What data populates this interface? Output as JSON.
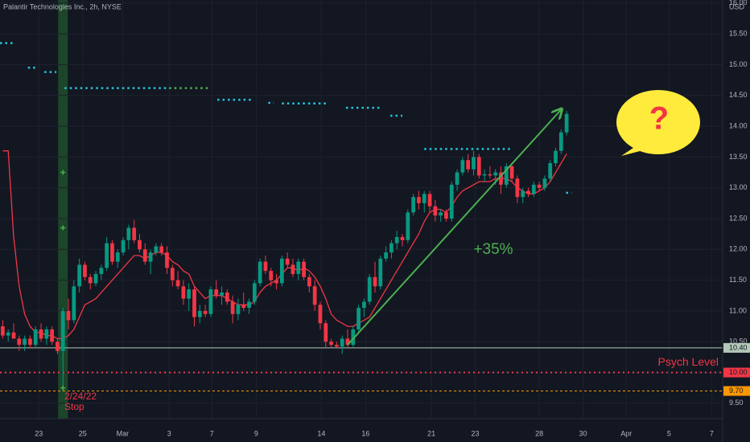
{
  "chart_data": {
    "type": "candlestick",
    "title": "Palantir Technologies Inc., 2h, NYSE",
    "currency": "USD",
    "xlim": [
      -0.5,
      131.5
    ],
    "ylim": [
      9.25,
      16.05
    ],
    "xticks": [
      {
        "value": 6.6,
        "label": "23"
      },
      {
        "value": 14.6,
        "label": "25"
      },
      {
        "value": 21.9,
        "label": "Mar"
      },
      {
        "value": 30.4,
        "label": "3"
      },
      {
        "value": 38.2,
        "label": "7"
      },
      {
        "value": 46.3,
        "label": "9"
      },
      {
        "value": 58.2,
        "label": "14"
      },
      {
        "value": 66.3,
        "label": "16"
      },
      {
        "value": 78.3,
        "label": "21"
      },
      {
        "value": 86.3,
        "label": "23"
      },
      {
        "value": 98.0,
        "label": "28"
      },
      {
        "value": 106.0,
        "label": "30"
      },
      {
        "value": 113.9,
        "label": "Apr"
      },
      {
        "value": 121.7,
        "label": "5"
      },
      {
        "value": 129.5,
        "label": "7"
      }
    ],
    "yticks": [
      {
        "value": 9.5,
        "label": "9.50"
      },
      {
        "value": 10,
        "label": "10.00"
      },
      {
        "value": 10.5,
        "label": "10.50"
      },
      {
        "value": 11,
        "label": "11.00"
      },
      {
        "value": 11.5,
        "label": "11.50"
      },
      {
        "value": 12,
        "label": "12.00"
      },
      {
        "value": 12.5,
        "label": "12.50"
      },
      {
        "value": 13,
        "label": "13.00"
      },
      {
        "value": 13.5,
        "label": "13.50"
      },
      {
        "value": 14,
        "label": "14.00"
      },
      {
        "value": 14.5,
        "label": "14.50"
      },
      {
        "value": 15,
        "label": "15.00"
      },
      {
        "value": 15.5,
        "label": "15.50"
      },
      {
        "value": 16,
        "label": "16.00"
      }
    ],
    "grid": true,
    "up_color": "#089981",
    "down_color": "#f23645",
    "x": [
      0,
      1,
      2,
      3,
      4,
      5,
      6,
      7,
      8,
      9,
      10,
      11,
      12,
      13,
      14,
      15,
      16,
      17,
      18,
      19,
      20,
      21,
      22,
      23,
      24,
      25,
      26,
      27,
      28,
      29,
      30,
      31,
      32,
      33,
      34,
      35,
      36,
      37,
      38,
      39,
      40,
      41,
      42,
      43,
      44,
      45,
      46,
      47,
      48,
      49,
      50,
      51,
      52,
      53,
      54,
      55,
      56,
      57,
      58,
      59,
      60,
      61,
      62,
      63,
      64,
      65,
      66,
      67,
      68,
      69,
      70,
      71,
      72,
      73,
      74,
      75,
      76,
      77,
      78,
      79,
      80,
      81,
      82,
      83,
      84,
      85,
      86,
      87,
      88,
      89,
      90,
      91,
      92,
      93,
      94,
      95,
      96,
      97,
      98,
      99,
      100,
      101,
      102,
      103
    ],
    "ohlc": [
      [
        10.75,
        10.85,
        10.55,
        10.6
      ],
      [
        10.6,
        10.7,
        10.5,
        10.65
      ],
      [
        10.65,
        10.8,
        10.55,
        10.55
      ],
      [
        10.55,
        10.6,
        10.35,
        10.45
      ],
      [
        10.45,
        10.6,
        10.35,
        10.55
      ],
      [
        10.55,
        10.6,
        10.4,
        10.45
      ],
      [
        10.45,
        10.75,
        10.4,
        10.7
      ],
      [
        10.7,
        10.8,
        10.5,
        10.55
      ],
      [
        10.55,
        10.75,
        10.45,
        10.7
      ],
      [
        10.7,
        10.75,
        10.45,
        10.5
      ],
      [
        10.5,
        10.55,
        10.3,
        10.35
      ],
      [
        10.35,
        11.05,
        9.72,
        11.0
      ],
      [
        11.0,
        11.2,
        10.7,
        10.85
      ],
      [
        10.85,
        11.5,
        10.8,
        11.4
      ],
      [
        11.4,
        11.85,
        11.3,
        11.75
      ],
      [
        11.75,
        11.8,
        11.5,
        11.55
      ],
      [
        11.55,
        11.6,
        11.35,
        11.45
      ],
      [
        11.45,
        11.65,
        11.4,
        11.6
      ],
      [
        11.6,
        11.75,
        11.5,
        11.7
      ],
      [
        11.7,
        12.2,
        11.65,
        12.1
      ],
      [
        12.1,
        12.15,
        11.75,
        11.8
      ],
      [
        11.8,
        12.0,
        11.7,
        11.95
      ],
      [
        11.95,
        12.2,
        11.9,
        12.15
      ],
      [
        12.15,
        12.4,
        12.0,
        12.35
      ],
      [
        12.35,
        12.48,
        12.1,
        12.15
      ],
      [
        12.15,
        12.25,
        11.95,
        12.0
      ],
      [
        12.0,
        12.1,
        11.75,
        11.8
      ],
      [
        11.8,
        12.0,
        11.6,
        11.95
      ],
      [
        11.95,
        12.1,
        11.9,
        12.05
      ],
      [
        12.05,
        12.1,
        11.9,
        11.95
      ],
      [
        11.95,
        12.05,
        11.6,
        11.7
      ],
      [
        11.7,
        11.75,
        11.4,
        11.5
      ],
      [
        11.5,
        11.65,
        11.35,
        11.4
      ],
      [
        11.4,
        11.5,
        11.1,
        11.2
      ],
      [
        11.2,
        11.45,
        11.0,
        11.35
      ],
      [
        11.35,
        11.4,
        10.75,
        10.9
      ],
      [
        10.9,
        11.1,
        10.8,
        11.0
      ],
      [
        11.0,
        11.1,
        10.9,
        10.95
      ],
      [
        10.95,
        11.4,
        10.9,
        11.35
      ],
      [
        11.35,
        11.5,
        11.2,
        11.25
      ],
      [
        11.25,
        11.4,
        11.1,
        11.3
      ],
      [
        11.3,
        11.35,
        11.1,
        11.15
      ],
      [
        11.15,
        11.25,
        10.8,
        10.95
      ],
      [
        10.95,
        11.2,
        10.85,
        11.1
      ],
      [
        11.1,
        11.3,
        11.0,
        11.05
      ],
      [
        11.05,
        11.2,
        10.95,
        11.15
      ],
      [
        11.15,
        11.5,
        11.1,
        11.45
      ],
      [
        11.45,
        11.85,
        11.4,
        11.8
      ],
      [
        11.8,
        11.9,
        11.6,
        11.65
      ],
      [
        11.65,
        11.7,
        11.4,
        11.5
      ],
      [
        11.5,
        11.6,
        11.35,
        11.45
      ],
      [
        11.45,
        11.9,
        11.4,
        11.85
      ],
      [
        11.85,
        11.95,
        11.7,
        11.75
      ],
      [
        11.75,
        11.85,
        11.55,
        11.6
      ],
      [
        11.6,
        11.85,
        11.5,
        11.8
      ],
      [
        11.8,
        11.85,
        11.5,
        11.55
      ],
      [
        11.55,
        11.6,
        11.3,
        11.4
      ],
      [
        11.4,
        11.5,
        11.0,
        11.1
      ],
      [
        11.1,
        11.15,
        10.7,
        10.8
      ],
      [
        10.8,
        10.85,
        10.4,
        10.5
      ],
      [
        10.5,
        10.55,
        10.4,
        10.45
      ],
      [
        10.45,
        10.5,
        10.4,
        10.42
      ],
      [
        10.42,
        10.6,
        10.3,
        10.55
      ],
      [
        10.55,
        10.7,
        10.4,
        10.45
      ],
      [
        10.45,
        10.75,
        10.4,
        10.7
      ],
      [
        10.7,
        11.1,
        10.65,
        11.05
      ],
      [
        11.05,
        11.2,
        10.9,
        11.15
      ],
      [
        11.15,
        11.6,
        11.1,
        11.55
      ],
      [
        11.55,
        11.8,
        11.3,
        11.4
      ],
      [
        11.4,
        11.9,
        11.35,
        11.85
      ],
      [
        11.85,
        12.05,
        11.8,
        11.95
      ],
      [
        11.95,
        12.15,
        11.85,
        12.1
      ],
      [
        12.1,
        12.3,
        12.0,
        12.2
      ],
      [
        12.2,
        12.25,
        12.05,
        12.15
      ],
      [
        12.15,
        12.65,
        12.1,
        12.6
      ],
      [
        12.6,
        12.9,
        12.55,
        12.85
      ],
      [
        12.85,
        12.95,
        12.65,
        12.75
      ],
      [
        12.75,
        12.95,
        12.6,
        12.9
      ],
      [
        12.9,
        12.95,
        12.6,
        12.7
      ],
      [
        12.7,
        12.8,
        12.45,
        12.55
      ],
      [
        12.55,
        12.65,
        12.45,
        12.6
      ],
      [
        12.6,
        12.65,
        12.45,
        12.5
      ],
      [
        12.5,
        13.1,
        12.45,
        13.05
      ],
      [
        13.05,
        13.3,
        12.95,
        13.25
      ],
      [
        13.25,
        13.5,
        13.2,
        13.45
      ],
      [
        13.45,
        13.55,
        13.25,
        13.3
      ],
      [
        13.3,
        13.6,
        13.2,
        13.5
      ],
      [
        13.5,
        13.55,
        13.15,
        13.2
      ],
      [
        13.2,
        13.3,
        13.1,
        13.22
      ],
      [
        13.22,
        13.35,
        13.15,
        13.2
      ],
      [
        13.2,
        13.3,
        13.05,
        13.25
      ],
      [
        13.25,
        13.35,
        12.9,
        13.05
      ],
      [
        13.05,
        13.4,
        13.0,
        13.35
      ],
      [
        13.35,
        13.4,
        13.1,
        13.15
      ],
      [
        13.15,
        13.2,
        12.75,
        12.85
      ],
      [
        12.85,
        13.0,
        12.75,
        12.95
      ],
      [
        12.95,
        13.0,
        12.85,
        12.9
      ],
      [
        12.9,
        13.1,
        12.85,
        13.05
      ],
      [
        13.05,
        13.1,
        12.95,
        13.0
      ],
      [
        13.0,
        13.2,
        12.95,
        13.15
      ],
      [
        13.15,
        13.45,
        13.1,
        13.4
      ],
      [
        13.4,
        13.65,
        13.35,
        13.6
      ],
      [
        13.6,
        13.95,
        13.55,
        13.9
      ],
      [
        13.9,
        14.25,
        13.85,
        14.2
      ]
    ],
    "trail_color": "#f23645",
    "trail": [
      13.6,
      13.6,
      12.2,
      11.4,
      10.95,
      10.75,
      10.65,
      10.65,
      10.6,
      10.6,
      10.55,
      10.55,
      10.6,
      10.7,
      10.9,
      11.1,
      11.15,
      11.2,
      11.3,
      11.4,
      11.5,
      11.6,
      11.7,
      11.8,
      11.9,
      11.9,
      11.85,
      11.9,
      11.95,
      11.95,
      11.9,
      11.8,
      11.75,
      11.65,
      11.6,
      11.4,
      11.3,
      11.2,
      11.25,
      11.25,
      11.25,
      11.2,
      11.15,
      11.1,
      11.1,
      11.1,
      11.15,
      11.3,
      11.4,
      11.45,
      11.5,
      11.6,
      11.7,
      11.7,
      11.65,
      11.7,
      11.65,
      11.55,
      11.4,
      11.2,
      10.95,
      10.85,
      10.8,
      10.75,
      10.75,
      10.8,
      10.85,
      10.9,
      11.05,
      11.2,
      11.35,
      11.5,
      11.65,
      11.8,
      11.95,
      12.1,
      12.25,
      12.45,
      12.6,
      12.65,
      12.65,
      12.6,
      12.7,
      12.85,
      12.95,
      13.0,
      13.05,
      13.1,
      13.1,
      13.1,
      13.15,
      13.15,
      13.15,
      13.1,
      13.0,
      12.95,
      12.9,
      12.9,
      12.95,
      13.0,
      13.1,
      13.25,
      13.4,
      13.55
    ],
    "levels": [
      {
        "start": -0.5,
        "end": 2.1,
        "value": 15.35,
        "color": "#26c6da"
      },
      {
        "start": 4.6,
        "end": 6.1,
        "value": 14.95,
        "color": "#26c6da"
      },
      {
        "start": 7.6,
        "end": 9.8,
        "value": 14.88,
        "color": "#26c6da"
      },
      {
        "start": 11.3,
        "end": 30.4,
        "value": 14.62,
        "color": "#26c6da"
      },
      {
        "start": 30.4,
        "end": 37.7,
        "value": 14.62,
        "color": "#4caf50"
      },
      {
        "start": 39.2,
        "end": 45.4,
        "value": 14.43,
        "color": "#26c6da"
      },
      {
        "start": 48.5,
        "end": 49.5,
        "value": 14.38,
        "color": "#26c6da"
      },
      {
        "start": 51,
        "end": 59.5,
        "value": 14.37,
        "color": "#26c6da"
      },
      {
        "start": 62.7,
        "end": 69.3,
        "value": 14.3,
        "color": "#26c6da"
      },
      {
        "start": 70.8,
        "end": 73,
        "value": 14.17,
        "color": "#26c6da"
      },
      {
        "start": 77,
        "end": 93.2,
        "value": 13.63,
        "color": "#26c6da"
      },
      {
        "start": 102.9,
        "end": 103.9,
        "value": 12.92,
        "color": "#26c6da"
      }
    ],
    "highlight_x": 11,
    "markers": [
      13.25,
      12.35,
      9.75
    ],
    "marker_color": "#4caf50",
    "hlines": [
      {
        "value": 10.4,
        "label": "10.40",
        "color": "#b2c8b8"
      },
      {
        "value": 10,
        "label": "10.00",
        "color": "#f23645",
        "text": "Psych Level"
      },
      {
        "value": 9.7,
        "label": "9.70",
        "color": "#ff9800"
      }
    ],
    "stop_note": [
      "2/24/22",
      "Stop"
    ],
    "arrow": {
      "x": [
        63,
        102
      ],
      "y": [
        10.45,
        14.27
      ]
    },
    "gain_label": "+35%",
    "callout": "?"
  }
}
